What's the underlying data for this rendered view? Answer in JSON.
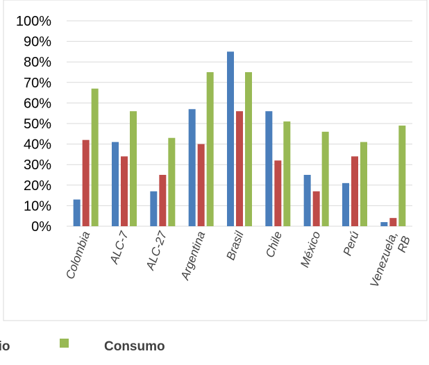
{
  "chart_data": {
    "type": "bar",
    "title": "",
    "xlabel": "",
    "ylabel": "",
    "ylim": [
      0,
      100
    ],
    "y_ticks": [
      "0%",
      "10%",
      "20%",
      "30%",
      "40%",
      "50%",
      "60%",
      "70%",
      "80%",
      "90%",
      "100%"
    ],
    "grid": true,
    "legend_position": "bottom",
    "categories": [
      "Colombia",
      "ALC-7",
      "ALC-27",
      "Argentina",
      "Brasil",
      "Chile",
      "México",
      "Perú",
      "Venezuela, RB"
    ],
    "category_label_lines": [
      [
        "Colombia"
      ],
      [
        "ALC-7"
      ],
      [
        "ALC-27"
      ],
      [
        "Argentina"
      ],
      [
        "Brasil"
      ],
      [
        "Chile"
      ],
      [
        "México"
      ],
      [
        "Perú"
      ],
      [
        "Venezuela,",
        "RB"
      ]
    ],
    "series": [
      {
        "values": [
          13,
          41,
          17,
          57,
          85,
          56,
          25,
          21,
          2
        ],
        "color": "#4a7ebb"
      },
      {
        "name": "dio",
        "values": [
          42,
          34,
          25,
          40,
          56,
          32,
          17,
          34,
          4
        ],
        "color": "#be4b48"
      },
      {
        "name": "Consumo",
        "values": [
          67,
          56,
          43,
          75,
          75,
          51,
          46,
          41,
          49
        ],
        "color": "#98b954"
      }
    ]
  }
}
